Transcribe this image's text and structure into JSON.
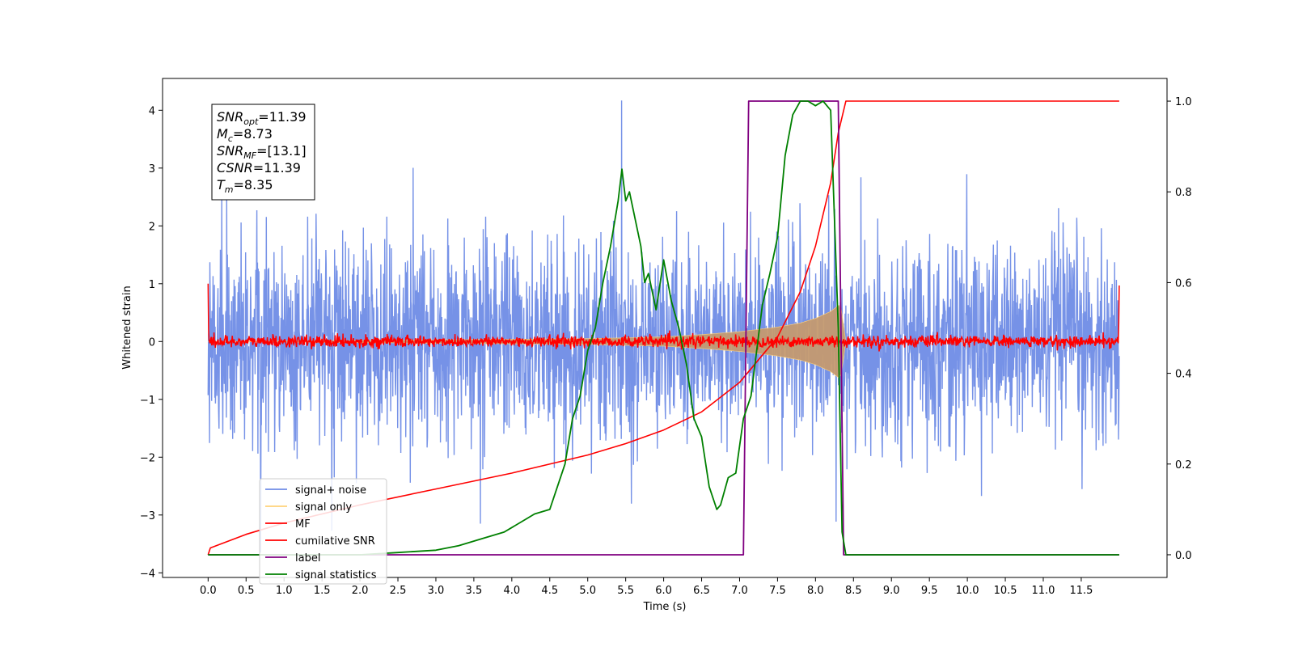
{
  "chart_data": {
    "type": "line",
    "xlabel": "Time (s)",
    "ylabel": "Whitened strain",
    "xlim": [
      -0.6,
      12.63
    ],
    "ylim_left": [
      -4.08,
      4.55
    ],
    "ylim_right": [
      -0.05,
      1.05
    ],
    "x_ticks": [
      0.0,
      0.5,
      1.0,
      1.5,
      2.0,
      2.5,
      3.0,
      3.5,
      4.0,
      4.5,
      5.0,
      5.5,
      6.0,
      6.5,
      7.0,
      7.5,
      8.0,
      8.5,
      9.0,
      9.5,
      10.0,
      10.5,
      11.0,
      11.5
    ],
    "x_tick_labels": [
      "0.0",
      "0.5",
      "1.0",
      "1.5",
      "2.0",
      "2.5",
      "3.0",
      "3.5",
      "4.0",
      "4.5",
      "5.0",
      "5.5",
      "6.0",
      "6.5",
      "7.0",
      "7.5",
      "8.0",
      "8.5",
      "9.0",
      "9.5",
      "10.0",
      "10.5",
      "11.0",
      "11.5"
    ],
    "y_left_ticks": [
      -4,
      -3,
      -2,
      -1,
      0,
      1,
      2,
      3,
      4
    ],
    "y_left_tick_labels": [
      "−4",
      "−3",
      "−2",
      "−1",
      "0",
      "1",
      "2",
      "3",
      "4"
    ],
    "y_right_ticks": [
      0.0,
      0.2,
      0.4,
      0.6,
      0.8,
      1.0
    ],
    "y_right_tick_labels": [
      "0.0",
      "0.2",
      "0.4",
      "0.6",
      "0.8",
      "1.0"
    ],
    "grid": false,
    "legend_position": "lower-left",
    "annotations": [
      {
        "base": "SNR",
        "sub": "opt",
        "rest": "=11.39"
      },
      {
        "base": "M",
        "sub": "c",
        "rest": "=8.73"
      },
      {
        "base": "SNR",
        "sub": "MF",
        "rest": "=[13.1]"
      },
      {
        "base": "CSNR",
        "sub": "",
        "rest": "=11.39"
      },
      {
        "base": "T",
        "sub": "m",
        "rest": "=8.35"
      }
    ],
    "series": [
      {
        "name": "signal+ noise",
        "axis": "left",
        "color": "#6f8ce6",
        "x_range": [
          0.0,
          12.0
        ],
        "noise_std": 0.85,
        "peak_max": 4.17,
        "peak_min": -3.65
      },
      {
        "name": "signal only",
        "axis": "left",
        "color": "#ffd27a",
        "fill_color": "#c49a70",
        "x": [
          0.0,
          5.0,
          6.0,
          6.5,
          7.0,
          7.5,
          7.8,
          8.0,
          8.2,
          8.3,
          8.33,
          8.4,
          12.0
        ],
        "envelope": [
          0.0,
          0.05,
          0.08,
          0.12,
          0.17,
          0.25,
          0.32,
          0.4,
          0.52,
          0.62,
          0.65,
          0.0,
          0.0
        ]
      },
      {
        "name": "MF",
        "axis": "left",
        "color": "#ff0000",
        "x_range": [
          0.0,
          12.0
        ],
        "noise_std": 0.05,
        "edge_values": [
          1.0,
          0.97
        ]
      },
      {
        "name": "cumilative SNR",
        "axis": "right",
        "color": "#ff0000",
        "x": [
          0.0,
          0.03,
          0.5,
          1.0,
          2.0,
          3.0,
          4.0,
          5.0,
          5.5,
          6.0,
          6.5,
          7.0,
          7.5,
          7.8,
          8.0,
          8.2,
          8.3,
          8.4,
          12.0
        ],
        "y": [
          0.0,
          0.015,
          0.045,
          0.07,
          0.11,
          0.145,
          0.18,
          0.22,
          0.245,
          0.275,
          0.315,
          0.38,
          0.48,
          0.58,
          0.68,
          0.82,
          0.93,
          1.0,
          1.0
        ]
      },
      {
        "name": "label",
        "axis": "right",
        "color": "#800080",
        "x": [
          0.0,
          7.05,
          7.12,
          8.3,
          8.37,
          12.0
        ],
        "y": [
          0.0,
          0.0,
          1.0,
          1.0,
          0.0,
          0.0
        ]
      },
      {
        "name": "signal statistics",
        "axis": "right",
        "color": "#008000",
        "x": [
          0.0,
          1.0,
          2.0,
          2.5,
          3.0,
          3.3,
          3.6,
          3.9,
          4.0,
          4.2,
          4.3,
          4.5,
          4.6,
          4.7,
          4.8,
          4.9,
          5.0,
          5.1,
          5.2,
          5.3,
          5.4,
          5.45,
          5.5,
          5.55,
          5.6,
          5.7,
          5.75,
          5.8,
          5.9,
          6.0,
          6.1,
          6.2,
          6.3,
          6.4,
          6.5,
          6.6,
          6.7,
          6.75,
          6.85,
          6.95,
          7.05,
          7.15,
          7.3,
          7.4,
          7.5,
          7.6,
          7.7,
          7.8,
          7.9,
          8.0,
          8.1,
          8.2,
          8.3,
          8.35,
          8.4,
          12.0
        ],
        "y": [
          0.0,
          0.0,
          0.0,
          0.005,
          0.01,
          0.02,
          0.035,
          0.05,
          0.06,
          0.08,
          0.09,
          0.1,
          0.15,
          0.2,
          0.3,
          0.35,
          0.45,
          0.5,
          0.6,
          0.68,
          0.78,
          0.85,
          0.78,
          0.8,
          0.76,
          0.68,
          0.6,
          0.62,
          0.54,
          0.65,
          0.56,
          0.5,
          0.42,
          0.3,
          0.26,
          0.15,
          0.1,
          0.11,
          0.17,
          0.18,
          0.3,
          0.35,
          0.55,
          0.62,
          0.7,
          0.88,
          0.97,
          1.0,
          1.0,
          0.99,
          1.0,
          0.98,
          0.5,
          0.05,
          0.0,
          0.0
        ]
      }
    ]
  }
}
